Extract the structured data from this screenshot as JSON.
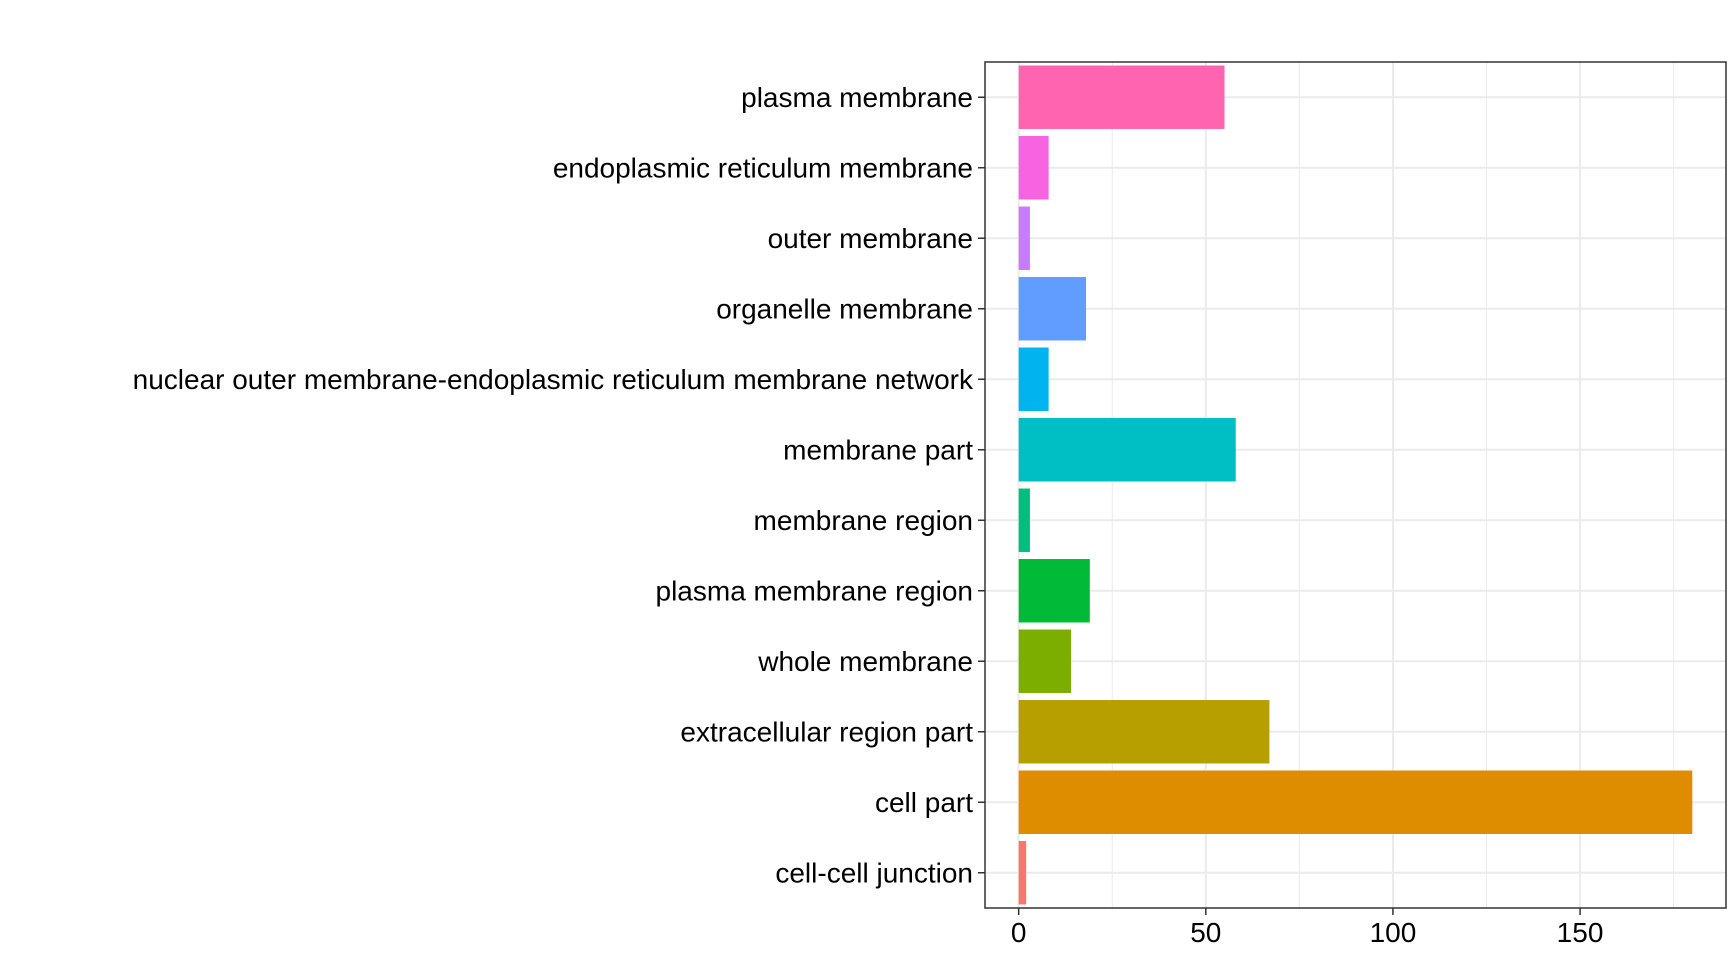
{
  "chart_data": {
    "type": "bar",
    "orientation": "horizontal",
    "title": "",
    "xlabel": "",
    "ylabel": "",
    "categories": [
      "plasma membrane",
      "endoplasmic reticulum membrane",
      "outer membrane",
      "organelle membrane",
      "nuclear outer membrane-endoplasmic reticulum membrane network",
      "membrane part",
      "membrane region",
      "plasma membrane region",
      "whole membrane",
      "extracellular region part",
      "cell part",
      "cell-cell junction"
    ],
    "values": [
      55,
      8,
      3,
      18,
      8,
      58,
      3,
      19,
      14,
      67,
      180,
      2
    ],
    "colors": [
      "#FF64B0",
      "#F763E0",
      "#C77CFF",
      "#619CFF",
      "#00B4EF",
      "#00BFC4",
      "#00BF7D",
      "#00BA38",
      "#7CAE00",
      "#B79F00",
      "#DE8C00",
      "#F8766D"
    ],
    "xlim": [
      -9,
      189
    ],
    "xticks": [
      0,
      50,
      100,
      150
    ],
    "grid": true,
    "legend": "none"
  }
}
